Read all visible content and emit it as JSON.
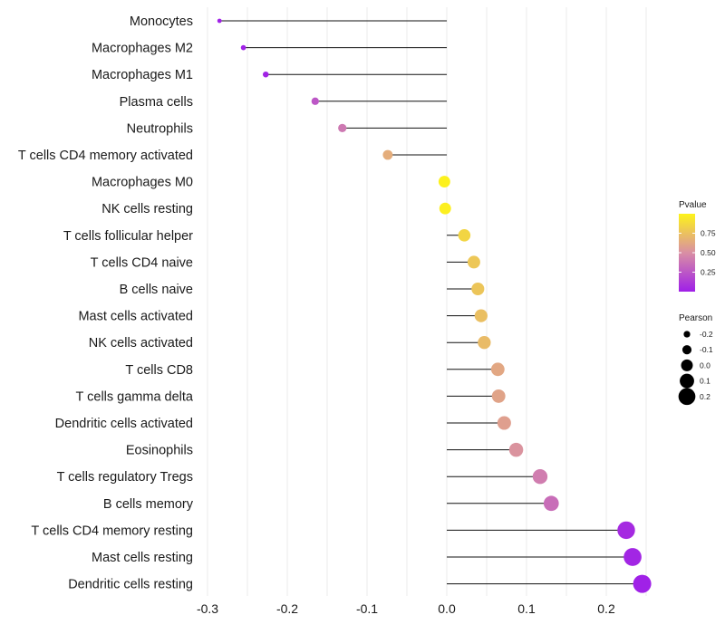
{
  "chart_data": {
    "type": "lollipop",
    "xlabel": "",
    "ylabel": "",
    "xlim": [
      -0.3,
      0.25
    ],
    "x_ticks": [
      "-0.3",
      "-0.2",
      "-0.1",
      "0.0",
      "0.1",
      "0.2"
    ],
    "categories": [
      "Monocytes",
      "Macrophages M2",
      "Macrophages M1",
      "Plasma cells",
      "Neutrophils",
      "T cells CD4 memory activated",
      "Macrophages M0",
      "NK cells resting",
      "T cells follicular helper",
      "T cells CD4 naive",
      "B cells naive",
      "Mast cells activated",
      "NK cells activated",
      "T cells CD8",
      "T cells gamma delta",
      "Dendritic cells activated",
      "Eosinophils",
      "T cells regulatory  Tregs ",
      "B cells memory",
      "T cells CD4 memory resting",
      "Mast cells resting",
      "Dendritic cells resting"
    ],
    "pearson": [
      -0.285,
      -0.255,
      -0.227,
      -0.165,
      -0.131,
      -0.074,
      -0.003,
      -0.002,
      0.022,
      0.034,
      0.039,
      0.043,
      0.047,
      0.064,
      0.065,
      0.072,
      0.087,
      0.117,
      0.131,
      0.225,
      0.233,
      0.245
    ],
    "pvalue": [
      0.01,
      0.01,
      0.02,
      0.25,
      0.4,
      0.65,
      0.99,
      0.98,
      0.85,
      0.78,
      0.77,
      0.74,
      0.72,
      0.62,
      0.6,
      0.58,
      0.52,
      0.42,
      0.35,
      0.05,
      0.03,
      0.01
    ],
    "legend": {
      "pvalue": {
        "title": "Pvalue",
        "ticks": [
          "0.75",
          "0.50",
          "0.25"
        ],
        "tick_values": [
          0.75,
          0.5,
          0.25
        ],
        "range": [
          0,
          1
        ]
      },
      "pearson": {
        "title": "Pearson",
        "ticks": [
          "-0.2",
          "-0.1",
          "0.0",
          "0.1",
          "0.2"
        ],
        "tick_values": [
          -0.2,
          -0.1,
          0.0,
          0.1,
          0.2
        ]
      }
    },
    "colors": {
      "low": "#9f1fe8",
      "mid": "#d98fa4",
      "high": "#fdf31a",
      "stem": "#111111",
      "grid": "#ebebeb"
    }
  }
}
